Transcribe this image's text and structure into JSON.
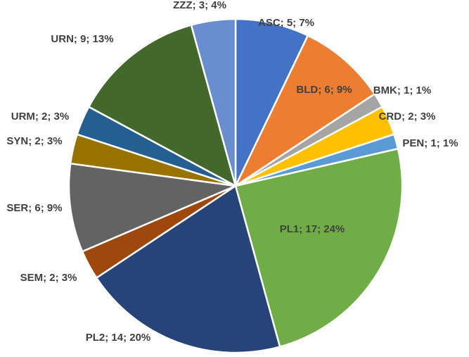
{
  "chart_data": {
    "type": "pie",
    "title": "",
    "slices": [
      {
        "name": "ASC",
        "value": 5,
        "percent": "7%",
        "label": "ASC; 5; 7%",
        "color": "#4472C4"
      },
      {
        "name": "BLD",
        "value": 6,
        "percent": "9%",
        "label": "BLD; 6; 9%",
        "color": "#ED7D31"
      },
      {
        "name": "BMK",
        "value": 1,
        "percent": "1%",
        "label": "BMK; 1; 1%",
        "color": "#A5A5A5"
      },
      {
        "name": "CRD",
        "value": 2,
        "percent": "3%",
        "label": "CRD; 2; 3%",
        "color": "#FFC000"
      },
      {
        "name": "PEN",
        "value": 1,
        "percent": "1%",
        "label": "PEN; 1; 1%",
        "color": "#5B9BD5"
      },
      {
        "name": "PL1",
        "value": 17,
        "percent": "24%",
        "label": "PL1; 17; 24%",
        "color": "#70AD47"
      },
      {
        "name": "PL2",
        "value": 14,
        "percent": "20%",
        "label": "PL2; 14; 20%",
        "color": "#264478"
      },
      {
        "name": "SEM",
        "value": 2,
        "percent": "3%",
        "label": "SEM; 2; 3%",
        "color": "#9E480E"
      },
      {
        "name": "SER",
        "value": 6,
        "percent": "9%",
        "label": "SER; 6; 9%",
        "color": "#636363"
      },
      {
        "name": "SYN",
        "value": 2,
        "percent": "3%",
        "label": "SYN; 2; 3%",
        "color": "#997300"
      },
      {
        "name": "URM",
        "value": 2,
        "percent": "3%",
        "label": "URM; 2; 3%",
        "color": "#255E91"
      },
      {
        "name": "URN",
        "value": 9,
        "percent": "13%",
        "label": "URN; 9; 13%",
        "color": "#43682B"
      },
      {
        "name": "ZZZ",
        "value": 3,
        "percent": "4%",
        "label": "ZZZ; 3; 4%",
        "color": "#698ED0"
      }
    ]
  }
}
